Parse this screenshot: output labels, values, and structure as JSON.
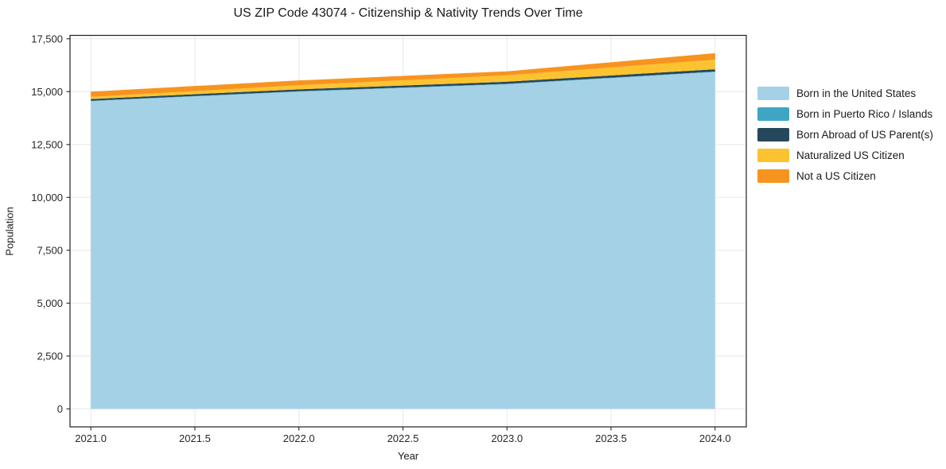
{
  "chart_data": {
    "type": "area",
    "stacked": true,
    "title": "US ZIP Code 43074 - Citizenship & Nativity Trends Over Time",
    "xlabel": "Year",
    "ylabel": "Population",
    "x": [
      2021,
      2022,
      2023,
      2024
    ],
    "series": [
      {
        "name": "Born in the United States",
        "color": "#a4d1e6",
        "values": [
          14550,
          15000,
          15350,
          15930
        ]
      },
      {
        "name": "Born in Puerto Rico / Islands",
        "color": "#3fa5c4",
        "values": [
          20,
          20,
          20,
          20
        ]
      },
      {
        "name": "Born Abroad of US Parent(s)",
        "color": "#26485c",
        "values": [
          80,
          90,
          100,
          110
        ]
      },
      {
        "name": "Naturalized US Citizen",
        "color": "#fcc331",
        "values": [
          100,
          190,
          300,
          450
        ]
      },
      {
        "name": "Not a US Citizen",
        "color": "#f7941f",
        "values": [
          250,
          230,
          190,
          310
        ]
      }
    ],
    "stack_totals": [
      15000,
      15530,
      15960,
      16820
    ],
    "xticks": {
      "values": [
        2021.0,
        2021.5,
        2022.0,
        2022.5,
        2023.0,
        2023.5,
        2024.0
      ],
      "labels": [
        "2021.0",
        "2021.5",
        "2022.0",
        "2022.5",
        "2023.0",
        "2023.5",
        "2024.0"
      ]
    },
    "yticks": {
      "values": [
        0,
        2500,
        5000,
        7500,
        10000,
        12500,
        15000,
        17500
      ],
      "labels": [
        "0",
        "2,500",
        "5,000",
        "7,500",
        "10,000",
        "12,500",
        "15,000",
        "17,500"
      ]
    },
    "xlim": [
      2020.9,
      2024.15
    ],
    "ylim": [
      -850,
      17660
    ],
    "grid": true,
    "legend_position": "right-outside"
  },
  "style": {
    "background": "#ffffff",
    "grid_color": "#e8e8e8",
    "spine_color": "#1f1f1f",
    "tick_color": "#262626",
    "text_color": "#1a1a1a"
  }
}
